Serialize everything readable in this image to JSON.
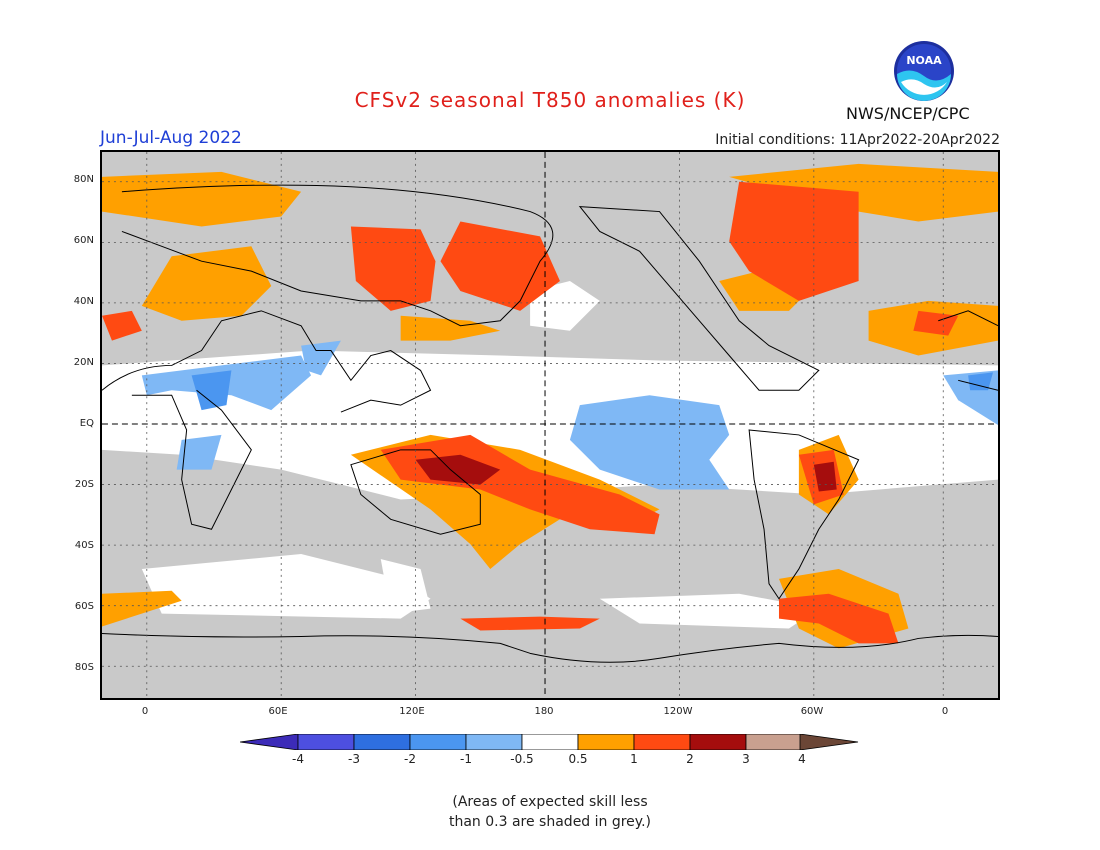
{
  "title": "CFSv2 seasonal T850 anomalies (K)",
  "season": "Jun-Jul-Aug 2022",
  "initial_conditions": "Initial conditions: 11Apr2022-20Apr2022",
  "agency": "NWS/NCEP/CPC",
  "logo_text": "NOAA",
  "lat_labels": [
    "80N",
    "60N",
    "40N",
    "20N",
    "EQ",
    "20S",
    "40S",
    "60S",
    "80S"
  ],
  "lon_labels": [
    "0",
    "60E",
    "120E",
    "180",
    "120W",
    "60W",
    "0"
  ],
  "colorbar": {
    "labels": [
      "-4",
      "-3",
      "-2",
      "-1",
      "-0.5",
      "0.5",
      "1",
      "2",
      "3",
      "4"
    ],
    "colors": [
      "#3c2bb8",
      "#4d4fe0",
      "#2e6fe0",
      "#4b96f0",
      "#7fb8f5",
      "#ffffff",
      "#ffa000",
      "#ff4a12",
      "#a50d0d",
      "#c9a08f",
      "#6b4636"
    ]
  },
  "colors": {
    "grey_skill": "#c9c9c9",
    "neutral": "#ffffff",
    "orange": "#ffa000",
    "red": "#ff4a12",
    "dark_red": "#a50d0d",
    "light_blue": "#7fb8f5",
    "mid_blue": "#4b96f0"
  },
  "note": [
    "(Areas of expected skill less",
    "than 0.3 are shaded in grey.)"
  ]
}
